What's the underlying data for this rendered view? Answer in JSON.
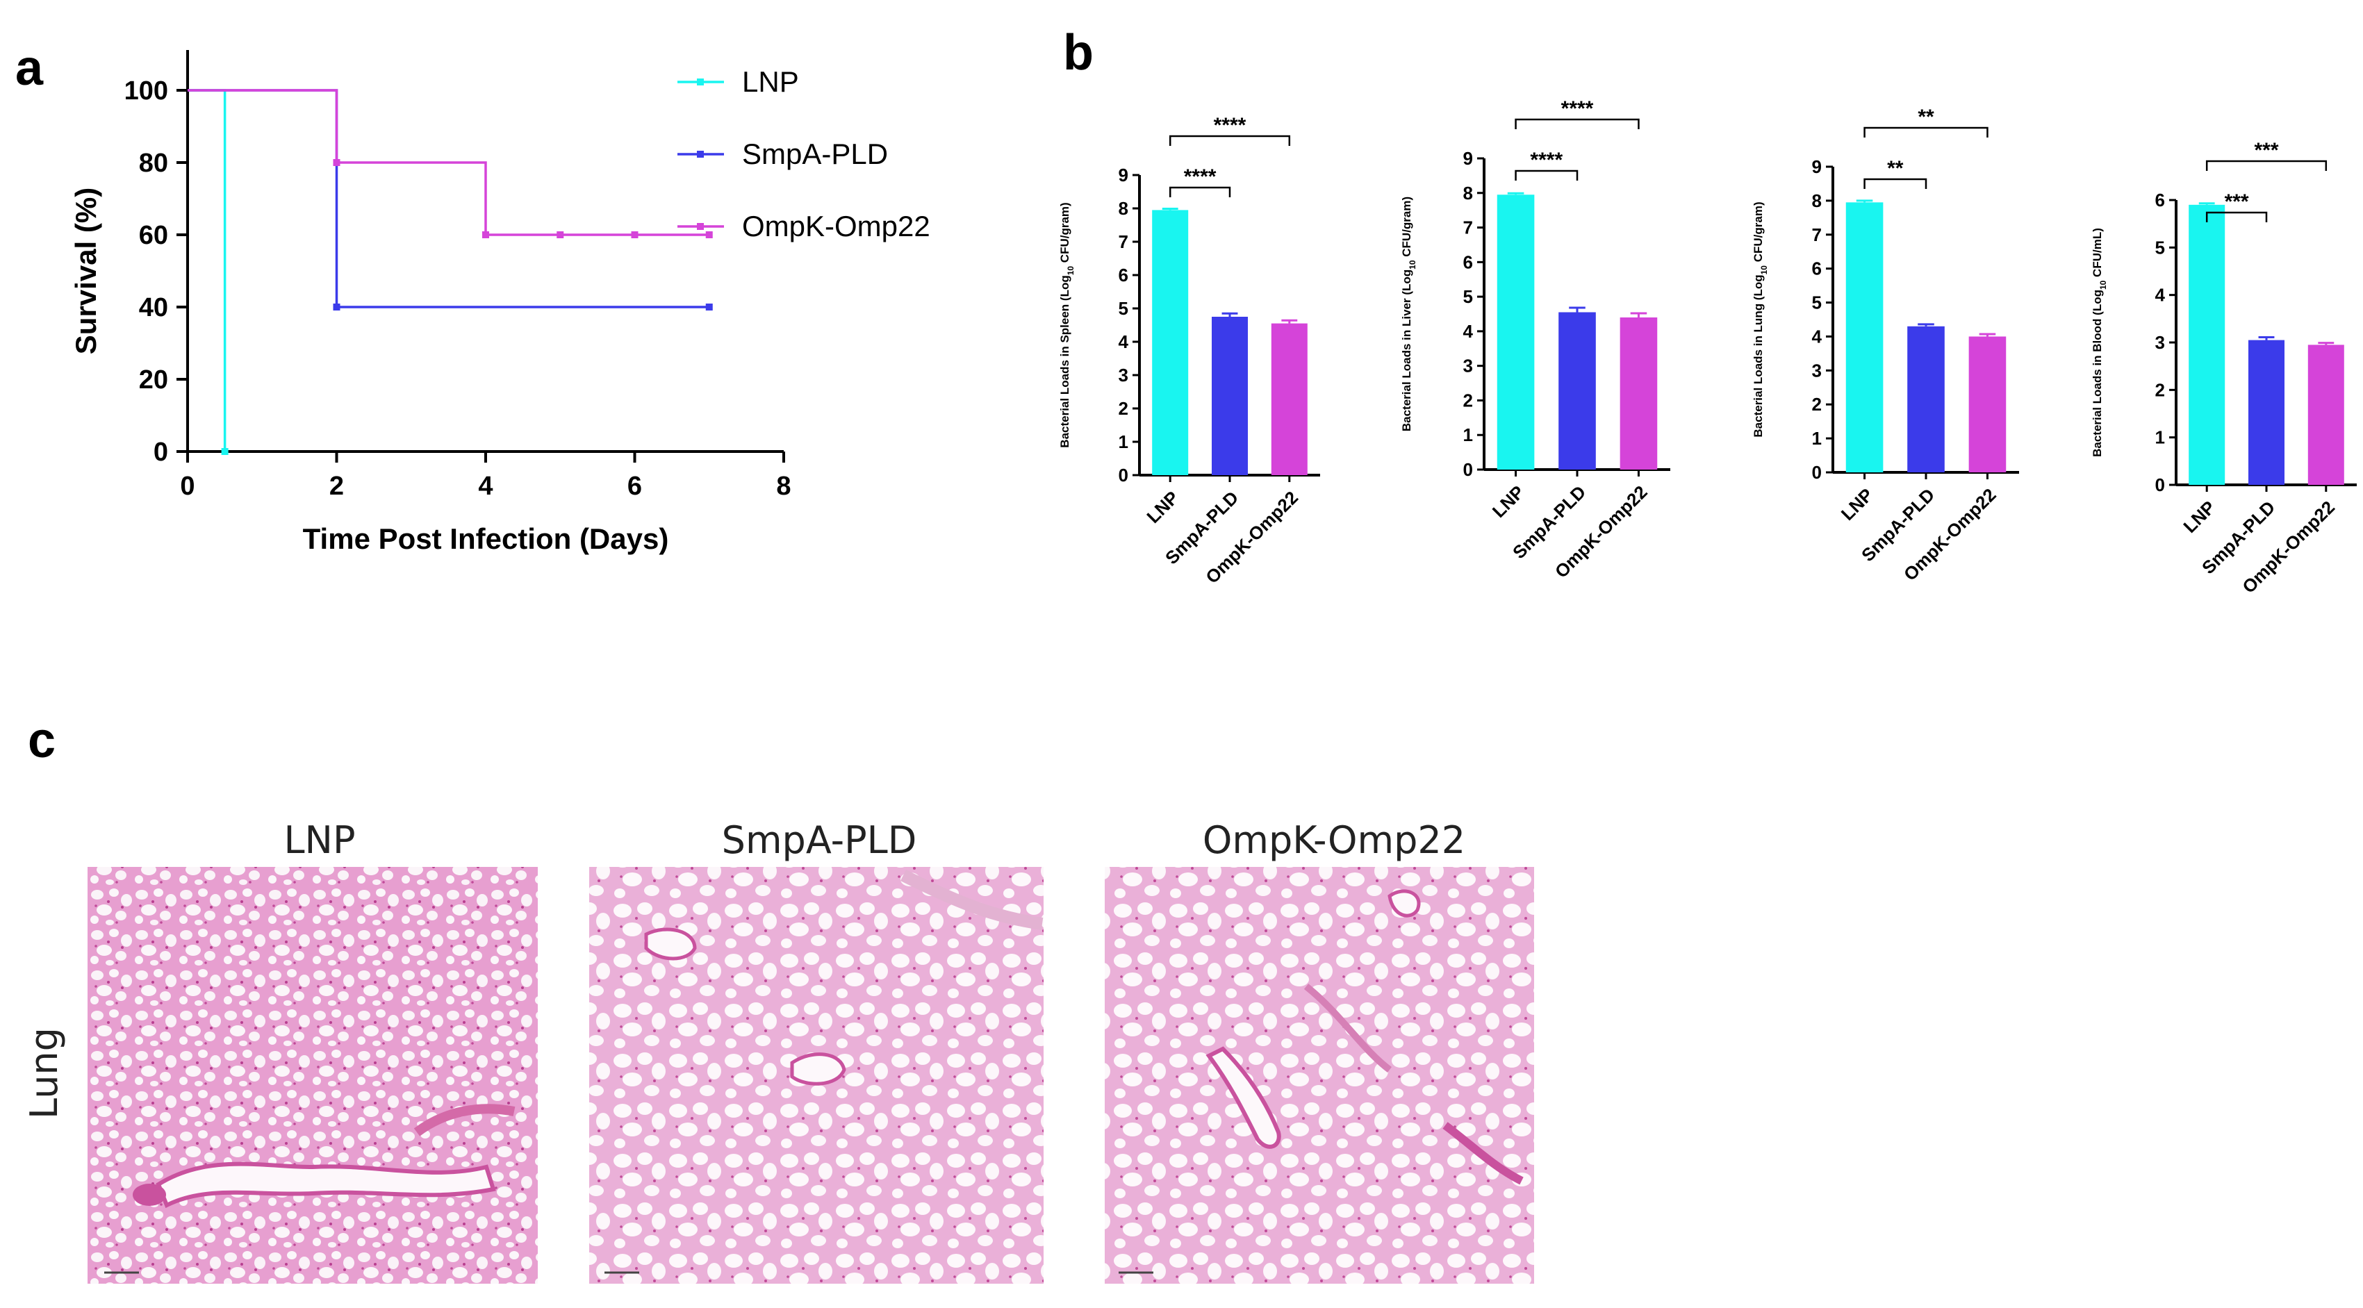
{
  "panels": {
    "a": "a",
    "b": "b",
    "c": "c"
  },
  "colors": {
    "LNP": "#19f5f0",
    "SmpA-PLD": "#3b3bea",
    "OmpK-Omp22": "#d544d9",
    "tissue": "#e8a7d4",
    "tissue_dark": "#c9529e"
  },
  "chart_data": [
    {
      "type": "line",
      "step": true,
      "xlabel": "Time Post Infection (Days)",
      "ylabel": "Survival (%)",
      "xlim": [
        0,
        8
      ],
      "ylim": [
        0,
        100
      ],
      "xticks": [
        "0",
        "2",
        "4",
        "6",
        "8"
      ],
      "yticks": [
        "0",
        "20",
        "40",
        "60",
        "80",
        "100"
      ],
      "legend_position": "top-right",
      "series": [
        {
          "name": "LNP",
          "x": [
            0,
            0.5,
            0.5
          ],
          "y": [
            100,
            100,
            0
          ]
        },
        {
          "name": "SmpA-PLD",
          "x": [
            0,
            2,
            2,
            7
          ],
          "y": [
            100,
            100,
            40,
            40
          ]
        },
        {
          "name": "OmpK-Omp22",
          "x": [
            0,
            2,
            2,
            4,
            4,
            7
          ],
          "y": [
            100,
            100,
            80,
            80,
            60,
            60
          ],
          "censor_x": [
            5,
            6
          ]
        }
      ]
    },
    {
      "type": "bar",
      "ylabel_parts": [
        "Bacterial Loads in Spleen (Log",
        "10",
        " CFU/gram)"
      ],
      "categories": [
        "LNP",
        "SmpA-PLD",
        "OmpK-Omp22"
      ],
      "values": [
        7.95,
        4.75,
        4.55
      ],
      "errors": [
        0.04,
        0.1,
        0.09
      ],
      "ylim": [
        0,
        9
      ],
      "yticks": [
        "0",
        "1",
        "2",
        "3",
        "4",
        "5",
        "6",
        "7",
        "8",
        "9"
      ],
      "comparisons": [
        {
          "pair": [
            0,
            1
          ],
          "label": "****"
        },
        {
          "pair": [
            0,
            2
          ],
          "label": "****"
        }
      ]
    },
    {
      "type": "bar",
      "ylabel_parts": [
        "Bacterial Loads in Liver (Log",
        "10",
        " CFU/gram)"
      ],
      "categories": [
        "LNP",
        "SmpA-PLD",
        "OmpK-Omp22"
      ],
      "values": [
        7.95,
        4.55,
        4.4
      ],
      "errors": [
        0.04,
        0.13,
        0.12
      ],
      "ylim": [
        0,
        9
      ],
      "yticks": [
        "0",
        "1",
        "2",
        "3",
        "4",
        "5",
        "6",
        "7",
        "8",
        "9"
      ],
      "comparisons": [
        {
          "pair": [
            0,
            1
          ],
          "label": "****"
        },
        {
          "pair": [
            0,
            2
          ],
          "label": "****"
        }
      ]
    },
    {
      "type": "bar",
      "ylabel_parts": [
        "Bacterial Loads in Lung (Log",
        "10",
        " CFU/gram)"
      ],
      "categories": [
        "LNP",
        "SmpA-PLD",
        "OmpK-Omp22"
      ],
      "values": [
        7.95,
        4.3,
        4.0
      ],
      "errors": [
        0.05,
        0.06,
        0.07
      ],
      "ylim": [
        0,
        9
      ],
      "yticks": [
        "0",
        "1",
        "2",
        "3",
        "4",
        "5",
        "6",
        "7",
        "8",
        "9"
      ],
      "comparisons": [
        {
          "pair": [
            0,
            1
          ],
          "label": "**"
        },
        {
          "pair": [
            0,
            2
          ],
          "label": "**"
        }
      ]
    },
    {
      "type": "bar",
      "ylabel_parts": [
        "Bacterial Loads in Blood (Log",
        "10",
        " CFU/mL)"
      ],
      "categories": [
        "LNP",
        "SmpA-PLD",
        "OmpK-Omp22"
      ],
      "values": [
        5.9,
        3.05,
        2.95
      ],
      "errors": [
        0.03,
        0.06,
        0.04
      ],
      "ylim": [
        0,
        6
      ],
      "yticks": [
        "0",
        "1",
        "2",
        "3",
        "4",
        "5",
        "6"
      ],
      "comparisons": [
        {
          "pair": [
            0,
            1
          ],
          "label": "***"
        },
        {
          "pair": [
            0,
            2
          ],
          "label": "***"
        }
      ]
    }
  ],
  "histology": {
    "row_label": "Lung",
    "columns": [
      "LNP",
      "SmpA-PLD",
      "OmpK-Omp22"
    ]
  }
}
